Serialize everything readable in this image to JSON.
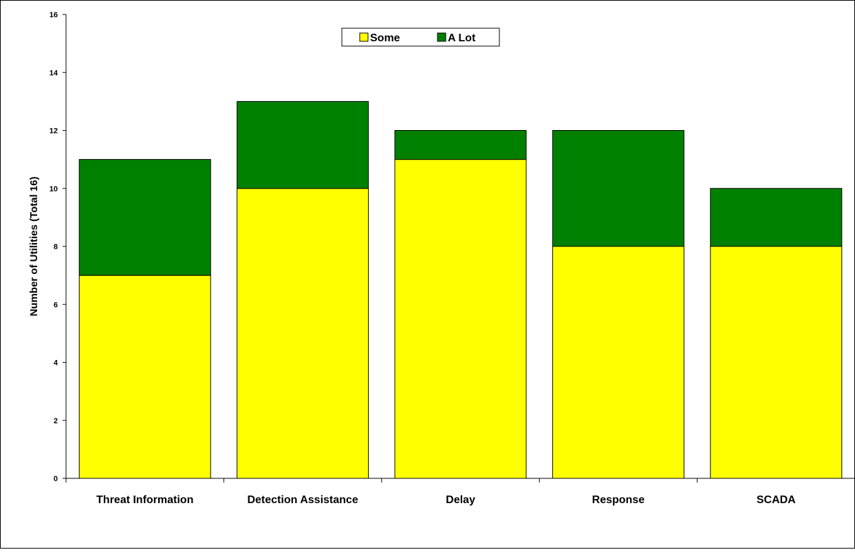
{
  "chart_data": {
    "type": "bar",
    "stacked": true,
    "title": "",
    "ylabel": "Number of Utilities (Total 16)",
    "xlabel": "",
    "ylim": [
      0,
      16
    ],
    "yticks": [
      0,
      2,
      4,
      6,
      8,
      10,
      12,
      14,
      16
    ],
    "categories": [
      "Threat Information",
      "Detection Assistance",
      "Delay",
      "Response",
      "SCADA"
    ],
    "series": [
      {
        "name": "Some",
        "values": [
          7,
          10,
          11,
          8,
          8
        ],
        "color": "#ffff00"
      },
      {
        "name": "A Lot",
        "values": [
          4,
          3,
          1,
          4,
          2
        ],
        "color": "#008000"
      }
    ],
    "legend_position": "top-center",
    "grid": false
  }
}
